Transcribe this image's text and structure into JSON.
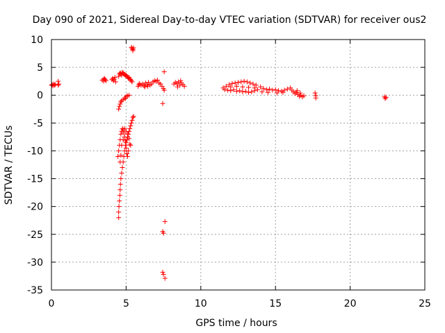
{
  "chart_data": {
    "type": "scatter",
    "title": "Day 090 of 2021, Sidereal Day-to-day VTEC variation (SDTVAR) for receiver ous2",
    "xlabel": "GPS time / hours",
    "ylabel": "SDTVAR / TECUs",
    "xlim": [
      0,
      25
    ],
    "ylim": [
      -35,
      10
    ],
    "xticks": [
      0,
      5,
      10,
      15,
      20,
      25
    ],
    "xtick_labels": [
      "0",
      "5",
      "10",
      "15",
      "20",
      "25"
    ],
    "yticks": [
      10,
      5,
      0,
      -5,
      -10,
      -15,
      -20,
      -25,
      -30,
      -35
    ],
    "ytick_labels": [
      "10",
      "5",
      "0",
      "-5",
      "-10",
      "-15",
      "-20",
      "-25",
      "-30",
      "-35"
    ],
    "grid": true,
    "marker": "+",
    "color": "#ff0000",
    "series": [
      {
        "name": "SDTVAR",
        "points": [
          [
            0.0,
            1.8
          ],
          [
            0.05,
            1.9
          ],
          [
            0.1,
            1.7
          ],
          [
            0.15,
            2.0
          ],
          [
            0.2,
            1.8
          ],
          [
            0.25,
            1.9
          ],
          [
            0.45,
            2.5
          ],
          [
            0.45,
            1.8
          ],
          [
            0.5,
            2.0
          ],
          [
            3.4,
            2.7
          ],
          [
            3.5,
            2.9
          ],
          [
            3.55,
            3.0
          ],
          [
            3.6,
            2.8
          ],
          [
            3.65,
            2.6
          ],
          [
            3.5,
            2.5
          ],
          [
            4.05,
            2.8
          ],
          [
            4.1,
            3.0
          ],
          [
            4.15,
            2.6
          ],
          [
            4.2,
            2.9
          ],
          [
            4.3,
            2.4
          ],
          [
            4.25,
            3.2
          ],
          [
            4.5,
            3.4
          ],
          [
            4.55,
            3.8
          ],
          [
            4.6,
            4.0
          ],
          [
            4.65,
            3.9
          ],
          [
            4.7,
            3.6
          ],
          [
            4.75,
            4.1
          ],
          [
            4.8,
            4.0
          ],
          [
            4.85,
            3.8
          ],
          [
            4.9,
            3.7
          ],
          [
            4.95,
            3.5
          ],
          [
            5.0,
            3.6
          ],
          [
            5.05,
            3.4
          ],
          [
            5.1,
            3.3
          ],
          [
            5.15,
            3.0
          ],
          [
            5.2,
            3.2
          ],
          [
            5.25,
            2.9
          ],
          [
            5.3,
            2.8
          ],
          [
            5.35,
            2.6
          ],
          [
            5.4,
            2.4
          ],
          [
            5.35,
            8.6
          ],
          [
            5.4,
            8.4
          ],
          [
            5.45,
            8.2
          ],
          [
            5.5,
            8.5
          ],
          [
            5.45,
            8.0
          ],
          [
            4.5,
            -2.5
          ],
          [
            4.55,
            -2.0
          ],
          [
            4.6,
            -1.6
          ],
          [
            4.65,
            -1.2
          ],
          [
            4.7,
            -1.0
          ],
          [
            4.8,
            -0.8
          ],
          [
            4.9,
            -0.5
          ],
          [
            5.0,
            -0.2
          ],
          [
            5.1,
            -0.1
          ],
          [
            5.2,
            0.0
          ],
          [
            4.95,
            -0.6
          ],
          [
            4.5,
            -22.0
          ],
          [
            4.5,
            -21.0
          ],
          [
            4.52,
            -20.0
          ],
          [
            4.55,
            -19.0
          ],
          [
            4.58,
            -18.0
          ],
          [
            4.6,
            -17.0
          ],
          [
            4.62,
            -16.0
          ],
          [
            4.65,
            -15.0
          ],
          [
            4.7,
            -14.0
          ],
          [
            4.75,
            -13.0
          ],
          [
            4.8,
            -12.0
          ],
          [
            4.85,
            -11.0
          ],
          [
            4.9,
            -10.0
          ],
          [
            4.95,
            -9.0
          ],
          [
            5.0,
            -8.5
          ],
          [
            5.05,
            -8.0
          ],
          [
            5.1,
            -7.5
          ],
          [
            5.15,
            -7.0
          ],
          [
            5.2,
            -6.5
          ],
          [
            5.25,
            -6.0
          ],
          [
            5.3,
            -5.5
          ],
          [
            5.35,
            -5.0
          ],
          [
            5.4,
            -4.5
          ],
          [
            5.45,
            -4.0
          ],
          [
            5.5,
            -3.8
          ],
          [
            4.45,
            -11.0
          ],
          [
            4.5,
            -10.0
          ],
          [
            4.55,
            -9.0
          ],
          [
            4.6,
            -8.0
          ],
          [
            4.65,
            -7.0
          ],
          [
            4.7,
            -6.5
          ],
          [
            4.75,
            -6.0
          ],
          [
            4.8,
            -6.2
          ],
          [
            4.85,
            -6.8
          ],
          [
            4.9,
            -7.5
          ],
          [
            4.95,
            -8.2
          ],
          [
            5.0,
            -9.5
          ],
          [
            5.05,
            -10.5
          ],
          [
            5.1,
            -11.0
          ],
          [
            4.6,
            -12.0
          ],
          [
            4.7,
            -9.0
          ],
          [
            4.8,
            -8.0
          ],
          [
            4.9,
            -6.0
          ],
          [
            5.0,
            -6.5
          ],
          [
            5.1,
            -7.0
          ],
          [
            5.2,
            -7.8
          ],
          [
            5.25,
            -8.8
          ],
          [
            5.3,
            -9.0
          ],
          [
            5.15,
            -10.0
          ],
          [
            4.65,
            -10.8
          ],
          [
            5.8,
            1.6
          ],
          [
            5.85,
            1.9
          ],
          [
            5.9,
            2.1
          ],
          [
            6.0,
            1.8
          ],
          [
            6.1,
            2.0
          ],
          [
            6.2,
            1.7
          ],
          [
            6.3,
            2.2
          ],
          [
            6.4,
            1.9
          ],
          [
            6.5,
            2.3
          ],
          [
            6.6,
            1.8
          ],
          [
            6.7,
            2.0
          ],
          [
            6.8,
            2.4
          ],
          [
            6.9,
            2.6
          ],
          [
            7.0,
            2.5
          ],
          [
            7.1,
            2.7
          ],
          [
            7.2,
            2.2
          ],
          [
            7.3,
            2.0
          ],
          [
            7.4,
            1.6
          ],
          [
            7.5,
            1.2
          ],
          [
            7.55,
            0.9
          ],
          [
            6.25,
            1.5
          ],
          [
            6.45,
            1.6
          ],
          [
            7.55,
            4.2
          ],
          [
            7.45,
            -1.5
          ],
          [
            7.6,
            -22.7
          ],
          [
            7.45,
            -24.5
          ],
          [
            7.5,
            -24.8
          ],
          [
            7.45,
            -31.8
          ],
          [
            7.5,
            -32.2
          ],
          [
            7.6,
            -32.9
          ],
          [
            8.2,
            2.0
          ],
          [
            8.3,
            2.3
          ],
          [
            8.4,
            2.1
          ],
          [
            8.5,
            2.4
          ],
          [
            8.6,
            1.8
          ],
          [
            8.7,
            2.2
          ],
          [
            8.8,
            1.9
          ],
          [
            8.9,
            1.6
          ],
          [
            8.45,
            1.5
          ],
          [
            8.65,
            2.6
          ],
          [
            11.5,
            1.3
          ],
          [
            11.7,
            1.6
          ],
          [
            11.9,
            1.9
          ],
          [
            12.1,
            2.1
          ],
          [
            12.3,
            2.2
          ],
          [
            12.5,
            2.3
          ],
          [
            12.7,
            2.4
          ],
          [
            12.9,
            2.5
          ],
          [
            13.1,
            2.4
          ],
          [
            13.3,
            2.2
          ],
          [
            13.5,
            2.0
          ],
          [
            13.7,
            1.8
          ],
          [
            11.6,
            1.0
          ],
          [
            11.8,
            0.9
          ],
          [
            12.0,
            0.8
          ],
          [
            12.2,
            1.0
          ],
          [
            12.4,
            0.7
          ],
          [
            12.6,
            0.8
          ],
          [
            12.8,
            0.6
          ],
          [
            13.0,
            0.7
          ],
          [
            13.2,
            0.5
          ],
          [
            13.4,
            0.6
          ],
          [
            13.6,
            0.8
          ],
          [
            13.8,
            1.0
          ],
          [
            12.0,
            1.5
          ],
          [
            12.4,
            1.6
          ],
          [
            12.8,
            1.5
          ],
          [
            13.2,
            1.4
          ],
          [
            13.6,
            1.3
          ],
          [
            14.0,
            1.5
          ],
          [
            14.2,
            1.2
          ],
          [
            14.4,
            1.0
          ],
          [
            14.6,
            1.1
          ],
          [
            14.8,
            0.9
          ],
          [
            15.0,
            1.0
          ],
          [
            15.2,
            0.8
          ],
          [
            15.4,
            0.7
          ],
          [
            15.6,
            0.9
          ],
          [
            15.8,
            1.1
          ],
          [
            16.0,
            1.3
          ],
          [
            14.1,
            0.6
          ],
          [
            14.5,
            0.5
          ],
          [
            15.1,
            0.4
          ],
          [
            15.5,
            0.5
          ],
          [
            16.1,
            0.9
          ],
          [
            16.2,
            0.6
          ],
          [
            16.3,
            0.3
          ],
          [
            16.4,
            0.5
          ],
          [
            16.5,
            0.1
          ],
          [
            16.6,
            -0.2
          ],
          [
            16.7,
            0.0
          ],
          [
            16.8,
            -0.3
          ],
          [
            16.9,
            -0.1
          ],
          [
            16.45,
            0.8
          ],
          [
            16.65,
            0.4
          ],
          [
            17.65,
            0.4
          ],
          [
            17.7,
            -0.1
          ],
          [
            17.7,
            -0.5
          ],
          [
            22.3,
            -0.3
          ],
          [
            22.35,
            -0.6
          ],
          [
            22.4,
            -0.4
          ]
        ]
      }
    ]
  }
}
